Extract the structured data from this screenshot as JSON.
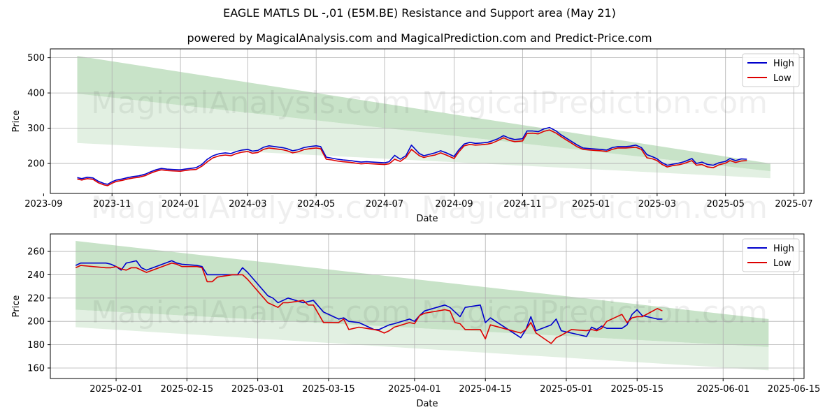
{
  "titles": {
    "main": "EAGLE MATLS  DL -,01 (E5M.BE) Resistance and Support area (May 21)",
    "sub": "powered by MagicalAnalysis.com and MagicalPrediction.com and Predict-Price.com"
  },
  "watermarks": [
    "MagicalAnalysis.com",
    "MagicalPrediction.com"
  ],
  "colors": {
    "high": "#0000cc",
    "low": "#dd0000",
    "band_dark": "#c8e3c8",
    "band_light": "#e2f0e2",
    "grid": "#b0b0b0"
  },
  "chart_data": [
    {
      "type": "line",
      "xlabel": "Date",
      "ylabel": "Price",
      "xlim": [
        "2023-09-07",
        "2025-07-10"
      ],
      "ylim": [
        115,
        525
      ],
      "x_ticks": [
        "2023-09",
        "2023-11",
        "2024-01",
        "2024-03",
        "2024-05",
        "2024-07",
        "2024-09",
        "2024-11",
        "2025-01",
        "2025-03",
        "2025-05",
        "2025-07"
      ],
      "y_ticks": [
        200,
        300,
        400,
        500
      ],
      "legend": {
        "position": "top-right",
        "entries": [
          "High",
          "Low"
        ]
      },
      "bands": {
        "x": [
          "2023-10-01",
          "2025-06-10"
        ],
        "resistance_upper": [
          505,
          200
        ],
        "resistance_lower": [
          398,
          178
        ],
        "support_lower": [
          258,
          158
        ]
      },
      "series": [
        {
          "name": "High",
          "x": [
            "2023-10-01",
            "2023-10-05",
            "2023-10-10",
            "2023-10-15",
            "2023-10-20",
            "2023-10-25",
            "2023-10-28",
            "2023-11-01",
            "2023-11-05",
            "2023-11-10",
            "2023-11-15",
            "2023-11-20",
            "2023-11-25",
            "2023-12-01",
            "2023-12-05",
            "2023-12-10",
            "2023-12-15",
            "2023-12-20",
            "2023-12-25",
            "2024-01-01",
            "2024-01-05",
            "2024-01-10",
            "2024-01-15",
            "2024-01-20",
            "2024-01-25",
            "2024-01-30",
            "2024-02-05",
            "2024-02-10",
            "2024-02-15",
            "2024-02-20",
            "2024-02-25",
            "2024-03-01",
            "2024-03-05",
            "2024-03-10",
            "2024-03-15",
            "2024-03-20",
            "2024-03-25",
            "2024-04-01",
            "2024-04-05",
            "2024-04-10",
            "2024-04-15",
            "2024-04-20",
            "2024-04-25",
            "2024-05-01",
            "2024-05-05",
            "2024-05-10",
            "2024-05-15",
            "2024-05-20",
            "2024-05-25",
            "2024-06-01",
            "2024-06-05",
            "2024-06-10",
            "2024-06-15",
            "2024-06-20",
            "2024-06-25",
            "2024-07-01",
            "2024-07-05",
            "2024-07-10",
            "2024-07-15",
            "2024-07-20",
            "2024-07-25",
            "2024-08-01",
            "2024-08-05",
            "2024-08-10",
            "2024-08-15",
            "2024-08-20",
            "2024-08-25",
            "2024-09-01",
            "2024-09-05",
            "2024-09-10",
            "2024-09-15",
            "2024-09-20",
            "2024-09-25",
            "2024-10-01",
            "2024-10-05",
            "2024-10-10",
            "2024-10-15",
            "2024-10-20",
            "2024-10-25",
            "2024-11-01",
            "2024-11-05",
            "2024-11-10",
            "2024-11-15",
            "2024-11-20",
            "2024-11-25",
            "2024-12-01",
            "2024-12-05",
            "2024-12-10",
            "2024-12-15",
            "2024-12-20",
            "2024-12-25",
            "2025-01-01",
            "2025-01-05",
            "2025-01-10",
            "2025-01-15",
            "2025-01-20",
            "2025-01-25",
            "2025-02-01",
            "2025-02-05",
            "2025-02-10",
            "2025-02-15",
            "2025-02-20",
            "2025-02-25",
            "2025-03-01",
            "2025-03-05",
            "2025-03-10",
            "2025-03-15",
            "2025-03-20",
            "2025-03-25",
            "2025-04-01",
            "2025-04-05",
            "2025-04-10",
            "2025-04-15",
            "2025-04-20",
            "2025-04-25",
            "2025-05-01",
            "2025-05-05",
            "2025-05-10",
            "2025-05-15",
            "2025-05-20"
          ],
          "values": [
            160,
            157,
            161,
            159,
            149,
            143,
            141,
            148,
            153,
            156,
            160,
            163,
            165,
            170,
            176,
            182,
            186,
            184,
            183,
            182,
            184,
            186,
            188,
            197,
            212,
            222,
            228,
            230,
            228,
            234,
            238,
            240,
            235,
            237,
            246,
            250,
            248,
            245,
            242,
            236,
            239,
            245,
            248,
            250,
            248,
            218,
            215,
            212,
            210,
            208,
            206,
            204,
            205,
            204,
            203,
            202,
            205,
            223,
            212,
            222,
            252,
            228,
            222,
            226,
            230,
            236,
            230,
            220,
            238,
            255,
            260,
            257,
            258,
            260,
            264,
            270,
            279,
            272,
            268,
            270,
            292,
            292,
            290,
            298,
            302,
            292,
            282,
            272,
            262,
            252,
            244,
            242,
            241,
            240,
            238,
            245,
            248,
            248,
            249,
            252,
            245,
            225,
            219,
            213,
            203,
            195,
            198,
            201,
            205,
            214,
            200,
            204,
            197,
            195,
            202,
            206,
            214,
            208,
            213,
            212
          ]
        },
        {
          "name": "Low",
          "x": [
            "2023-10-01",
            "2023-10-05",
            "2023-10-10",
            "2023-10-15",
            "2023-10-20",
            "2023-10-25",
            "2023-10-28",
            "2023-11-01",
            "2023-11-05",
            "2023-11-10",
            "2023-11-15",
            "2023-11-20",
            "2023-11-25",
            "2023-12-01",
            "2023-12-05",
            "2023-12-10",
            "2023-12-15",
            "2023-12-20",
            "2023-12-25",
            "2024-01-01",
            "2024-01-05",
            "2024-01-10",
            "2024-01-15",
            "2024-01-20",
            "2024-01-25",
            "2024-01-30",
            "2024-02-05",
            "2024-02-10",
            "2024-02-15",
            "2024-02-20",
            "2024-02-25",
            "2024-03-01",
            "2024-03-05",
            "2024-03-10",
            "2024-03-15",
            "2024-03-20",
            "2024-03-25",
            "2024-04-01",
            "2024-04-05",
            "2024-04-10",
            "2024-04-15",
            "2024-04-20",
            "2024-04-25",
            "2024-05-01",
            "2024-05-05",
            "2024-05-10",
            "2024-05-15",
            "2024-05-20",
            "2024-05-25",
            "2024-06-01",
            "2024-06-05",
            "2024-06-10",
            "2024-06-15",
            "2024-06-20",
            "2024-06-25",
            "2024-07-01",
            "2024-07-05",
            "2024-07-10",
            "2024-07-15",
            "2024-07-20",
            "2024-07-25",
            "2024-08-01",
            "2024-08-05",
            "2024-08-10",
            "2024-08-15",
            "2024-08-20",
            "2024-08-25",
            "2024-09-01",
            "2024-09-05",
            "2024-09-10",
            "2024-09-15",
            "2024-09-20",
            "2024-09-25",
            "2024-10-01",
            "2024-10-05",
            "2024-10-10",
            "2024-10-15",
            "2024-10-20",
            "2024-10-25",
            "2024-11-01",
            "2024-11-05",
            "2024-11-10",
            "2024-11-15",
            "2024-11-20",
            "2024-11-25",
            "2024-12-01",
            "2024-12-05",
            "2024-12-10",
            "2024-12-15",
            "2024-12-20",
            "2024-12-25",
            "2025-01-01",
            "2025-01-05",
            "2025-01-10",
            "2025-01-15",
            "2025-01-20",
            "2025-01-25",
            "2025-02-01",
            "2025-02-05",
            "2025-02-10",
            "2025-02-15",
            "2025-02-20",
            "2025-02-25",
            "2025-03-01",
            "2025-03-05",
            "2025-03-10",
            "2025-03-15",
            "2025-03-20",
            "2025-03-25",
            "2025-04-01",
            "2025-04-05",
            "2025-04-10",
            "2025-04-15",
            "2025-04-20",
            "2025-04-25",
            "2025-05-01",
            "2025-05-05",
            "2025-05-10",
            "2025-05-15",
            "2025-05-20"
          ],
          "values": [
            156,
            153,
            157,
            155,
            145,
            139,
            137,
            144,
            149,
            152,
            156,
            159,
            161,
            166,
            172,
            178,
            182,
            180,
            179,
            178,
            180,
            182,
            183,
            192,
            205,
            216,
            222,
            224,
            222,
            228,
            232,
            234,
            229,
            231,
            240,
            244,
            242,
            239,
            236,
            230,
            233,
            239,
            242,
            244,
            242,
            212,
            210,
            207,
            205,
            203,
            201,
            199,
            200,
            199,
            198,
            197,
            199,
            212,
            206,
            217,
            240,
            222,
            217,
            221,
            224,
            230,
            224,
            214,
            232,
            250,
            254,
            252,
            253,
            255,
            258,
            265,
            273,
            266,
            262,
            264,
            285,
            286,
            284,
            291,
            295,
            286,
            277,
            267,
            257,
            247,
            240,
            238,
            237,
            236,
            234,
            240,
            244,
            244,
            245,
            246,
            240,
            216,
            213,
            208,
            198,
            190,
            194,
            196,
            200,
            208,
            195,
            197,
            190,
            188,
            196,
            201,
            208,
            203,
            207,
            208
          ]
        }
      ]
    },
    {
      "type": "line",
      "xlabel": "Date",
      "ylabel": "Price",
      "xlim": [
        "2025-01-19",
        "2025-06-17"
      ],
      "ylim": [
        151,
        275
      ],
      "x_ticks": [
        "2025-02-01",
        "2025-02-15",
        "2025-03-01",
        "2025-03-15",
        "2025-04-01",
        "2025-04-15",
        "2025-05-01",
        "2025-05-15",
        "2025-06-01",
        "2025-06-15"
      ],
      "y_ticks": [
        160,
        180,
        200,
        220,
        240,
        260
      ],
      "legend": {
        "position": "top-right",
        "entries": [
          "High",
          "Low"
        ]
      },
      "bands": {
        "x": [
          "2025-01-24",
          "2025-06-10"
        ],
        "resistance_upper": [
          269,
          202
        ],
        "resistance_lower": [
          210,
          178
        ],
        "support_lower": [
          195,
          158
        ]
      },
      "series": [
        {
          "name": "High",
          "x": [
            "2025-01-24",
            "2025-01-25",
            "2025-01-30",
            "2025-01-31",
            "2025-02-01",
            "2025-02-02",
            "2025-02-03",
            "2025-02-04",
            "2025-02-05",
            "2025-02-06",
            "2025-02-07",
            "2025-02-12",
            "2025-02-13",
            "2025-02-14",
            "2025-02-17",
            "2025-02-18",
            "2025-02-19",
            "2025-02-20",
            "2025-02-21",
            "2025-02-24",
            "2025-02-25",
            "2025-02-26",
            "2025-02-27",
            "2025-03-03",
            "2025-03-04",
            "2025-03-05",
            "2025-03-06",
            "2025-03-07",
            "2025-03-10",
            "2025-03-11",
            "2025-03-12",
            "2025-03-14",
            "2025-03-17",
            "2025-03-18",
            "2025-03-19",
            "2025-03-21",
            "2025-03-24",
            "2025-03-25",
            "2025-03-26",
            "2025-03-27",
            "2025-03-28",
            "2025-03-31",
            "2025-04-01",
            "2025-04-02",
            "2025-04-03",
            "2025-04-07",
            "2025-04-08",
            "2025-04-09",
            "2025-04-10",
            "2025-04-11",
            "2025-04-14",
            "2025-04-15",
            "2025-04-16",
            "2025-04-22",
            "2025-04-23",
            "2025-04-24",
            "2025-04-25",
            "2025-04-28",
            "2025-04-29",
            "2025-04-30",
            "2025-05-02",
            "2025-05-05",
            "2025-05-06",
            "2025-05-07",
            "2025-05-08",
            "2025-05-09",
            "2025-05-12",
            "2025-05-13",
            "2025-05-14",
            "2025-05-15",
            "2025-05-16",
            "2025-05-19",
            "2025-05-20"
          ],
          "values": [
            248,
            250,
            250,
            249,
            247,
            244,
            250,
            251,
            252,
            246,
            244,
            252,
            250,
            249,
            248,
            247,
            240,
            240,
            240,
            240,
            240,
            246,
            242,
            222,
            220,
            216,
            218,
            220,
            216,
            217,
            218,
            208,
            202,
            203,
            200,
            199,
            193,
            193,
            195,
            197,
            198,
            202,
            200,
            205,
            209,
            214,
            212,
            208,
            204,
            212,
            214,
            199,
            203,
            186,
            193,
            204,
            192,
            197,
            202,
            192,
            190,
            187,
            195,
            193,
            196,
            194,
            194,
            197,
            206,
            210,
            205,
            202,
            202
          ]
        },
        {
          "name": "Low",
          "x": [
            "2025-01-24",
            "2025-01-25",
            "2025-01-30",
            "2025-01-31",
            "2025-02-01",
            "2025-02-02",
            "2025-02-03",
            "2025-02-04",
            "2025-02-05",
            "2025-02-06",
            "2025-02-07",
            "2025-02-12",
            "2025-02-13",
            "2025-02-14",
            "2025-02-17",
            "2025-02-18",
            "2025-02-19",
            "2025-02-20",
            "2025-02-21",
            "2025-02-24",
            "2025-02-25",
            "2025-02-26",
            "2025-02-27",
            "2025-03-03",
            "2025-03-04",
            "2025-03-05",
            "2025-03-06",
            "2025-03-07",
            "2025-03-10",
            "2025-03-11",
            "2025-03-12",
            "2025-03-14",
            "2025-03-17",
            "2025-03-18",
            "2025-03-19",
            "2025-03-21",
            "2025-03-24",
            "2025-03-25",
            "2025-03-26",
            "2025-03-27",
            "2025-03-28",
            "2025-03-31",
            "2025-04-01",
            "2025-04-02",
            "2025-04-03",
            "2025-04-07",
            "2025-04-08",
            "2025-04-09",
            "2025-04-10",
            "2025-04-11",
            "2025-04-14",
            "2025-04-15",
            "2025-04-16",
            "2025-04-22",
            "2025-04-23",
            "2025-04-24",
            "2025-04-25",
            "2025-04-28",
            "2025-04-29",
            "2025-04-30",
            "2025-05-02",
            "2025-05-05",
            "2025-05-06",
            "2025-05-07",
            "2025-05-08",
            "2025-05-09",
            "2025-05-12",
            "2025-05-13",
            "2025-05-14",
            "2025-05-15",
            "2025-05-16",
            "2025-05-19",
            "2025-05-20"
          ],
          "values": [
            246,
            248,
            246,
            246,
            247,
            245,
            244,
            246,
            246,
            244,
            242,
            250,
            249,
            247,
            247,
            246,
            234,
            234,
            238,
            240,
            240,
            240,
            236,
            216,
            214,
            212,
            216,
            216,
            218,
            214,
            214,
            199,
            199,
            202,
            193,
            195,
            193,
            192,
            190,
            192,
            195,
            199,
            198,
            205,
            207,
            210,
            209,
            199,
            198,
            193,
            193,
            185,
            197,
            190,
            193,
            199,
            190,
            181,
            186,
            188,
            193,
            192,
            193,
            192,
            194,
            200,
            206,
            199,
            203,
            204,
            204,
            211,
            209
          ]
        }
      ]
    }
  ]
}
